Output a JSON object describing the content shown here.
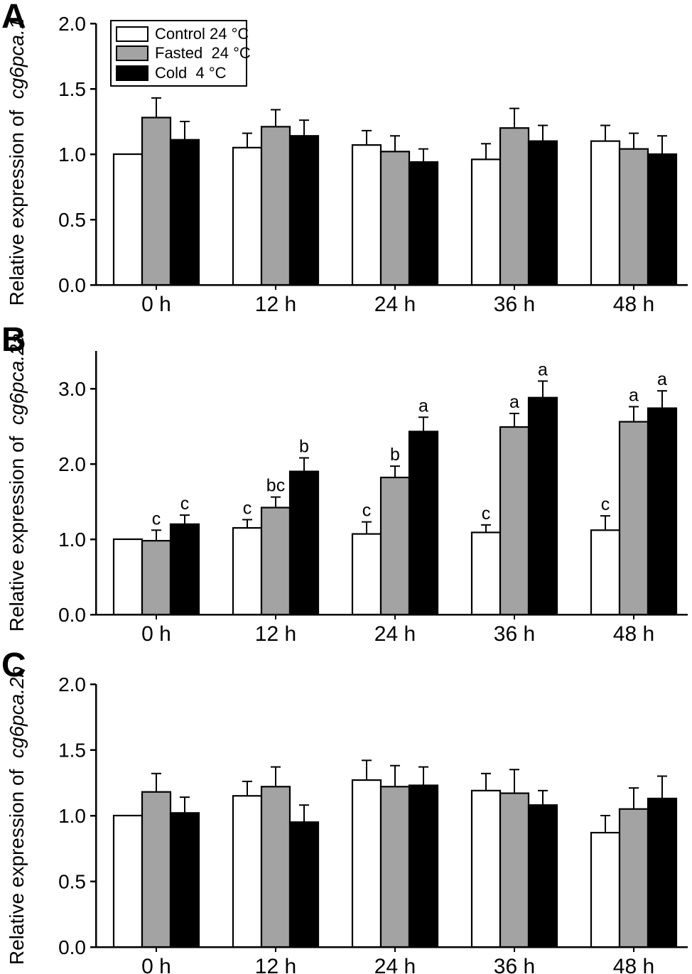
{
  "legend": {
    "items": [
      {
        "label": "Control 24 °C",
        "color": "#ffffff"
      },
      {
        "label": "Fasted  24 °C",
        "color": "#a3a3a3"
      },
      {
        "label": "Cold  4 °C",
        "color": "#000000"
      }
    ]
  },
  "chart_data": [
    {
      "type": "bar",
      "panel": "A",
      "ylabel": "Relative expression of cg6pca.1",
      "ylabel_prefix": "Relative expression of",
      "gene": "cg6pca.1",
      "categories": [
        "0 h",
        "12 h",
        "24 h",
        "36 h",
        "48 h"
      ],
      "ylim": [
        0,
        2.0
      ],
      "yticks": [
        0.0,
        0.5,
        1.0,
        1.5,
        2.0
      ],
      "ytick_labels": [
        "0.0",
        "0.5",
        "1.0",
        "1.5",
        "2.0"
      ],
      "grid": false,
      "legend_position": "upper-left",
      "series": [
        {
          "name": "Control 24 °C",
          "color": "#ffffff",
          "values": [
            1.0,
            1.05,
            1.07,
            0.96,
            1.1
          ],
          "errors": [
            null,
            0.11,
            0.11,
            0.12,
            0.12
          ],
          "letters": [
            null,
            null,
            null,
            null,
            null
          ]
        },
        {
          "name": "Fasted 24 °C",
          "color": "#a3a3a3",
          "values": [
            1.28,
            1.21,
            1.02,
            1.2,
            1.04
          ],
          "errors": [
            0.15,
            0.13,
            0.12,
            0.15,
            0.12
          ],
          "letters": [
            null,
            null,
            null,
            null,
            null
          ]
        },
        {
          "name": "Cold 4 °C",
          "color": "#000000",
          "values": [
            1.11,
            1.14,
            0.94,
            1.1,
            1.0
          ],
          "errors": [
            0.14,
            0.12,
            0.1,
            0.12,
            0.14
          ],
          "letters": [
            null,
            null,
            null,
            null,
            null
          ]
        }
      ]
    },
    {
      "type": "bar",
      "panel": "B",
      "ylabel": "Relative expression of cg6pca.2a",
      "ylabel_prefix": "Relative expression of",
      "gene": "cg6pca.2a",
      "categories": [
        "0 h",
        "12 h",
        "24 h",
        "36 h",
        "48 h"
      ],
      "ylim": [
        0,
        3.5
      ],
      "yticks": [
        0.0,
        1.0,
        2.0,
        3.0
      ],
      "ytick_labels": [
        "0.0",
        "1.0",
        "2.0",
        "3.0"
      ],
      "grid": false,
      "series": [
        {
          "name": "Control 24 °C",
          "color": "#ffffff",
          "values": [
            1.0,
            1.15,
            1.07,
            1.09,
            1.12
          ],
          "errors": [
            null,
            0.11,
            0.16,
            0.1,
            0.19
          ],
          "letters": [
            null,
            "c",
            "c",
            "c",
            "c"
          ]
        },
        {
          "name": "Fasted 24 °C",
          "color": "#a3a3a3",
          "values": [
            0.98,
            1.42,
            1.82,
            2.49,
            2.56
          ],
          "errors": [
            0.14,
            0.14,
            0.15,
            0.18,
            0.2
          ],
          "letters": [
            "c",
            "bc",
            "b",
            "a",
            "a"
          ]
        },
        {
          "name": "Cold 4 °C",
          "color": "#000000",
          "values": [
            1.2,
            1.9,
            2.43,
            2.88,
            2.74
          ],
          "errors": [
            0.12,
            0.18,
            0.19,
            0.22,
            0.23
          ],
          "letters": [
            "c",
            "b",
            "a",
            "a",
            "a"
          ]
        }
      ]
    },
    {
      "type": "bar",
      "panel": "C",
      "ylabel": "Relative expression of cg6pca.2b",
      "ylabel_prefix": "Relative expression of",
      "gene": "cg6pca.2b",
      "categories": [
        "0 h",
        "12 h",
        "24 h",
        "36 h",
        "48 h"
      ],
      "ylim": [
        0,
        2.0
      ],
      "yticks": [
        0.0,
        0.5,
        1.0,
        1.5,
        2.0
      ],
      "ytick_labels": [
        "0.0",
        "0.5",
        "1.0",
        "1.5",
        "2.0"
      ],
      "grid": false,
      "series": [
        {
          "name": "Control 24 °C",
          "color": "#ffffff",
          "values": [
            1.0,
            1.15,
            1.27,
            1.19,
            0.87
          ],
          "errors": [
            null,
            0.11,
            0.15,
            0.13,
            0.13
          ],
          "letters": [
            null,
            null,
            null,
            null,
            null
          ]
        },
        {
          "name": "Fasted 24 °C",
          "color": "#a3a3a3",
          "values": [
            1.18,
            1.22,
            1.22,
            1.17,
            1.05
          ],
          "errors": [
            0.14,
            0.15,
            0.16,
            0.18,
            0.16
          ],
          "letters": [
            null,
            null,
            null,
            null,
            null
          ]
        },
        {
          "name": "Cold 4 °C",
          "color": "#000000",
          "values": [
            1.02,
            0.95,
            1.23,
            1.08,
            1.13
          ],
          "errors": [
            0.12,
            0.13,
            0.14,
            0.11,
            0.17
          ],
          "letters": [
            null,
            null,
            null,
            null,
            null
          ]
        }
      ]
    }
  ]
}
